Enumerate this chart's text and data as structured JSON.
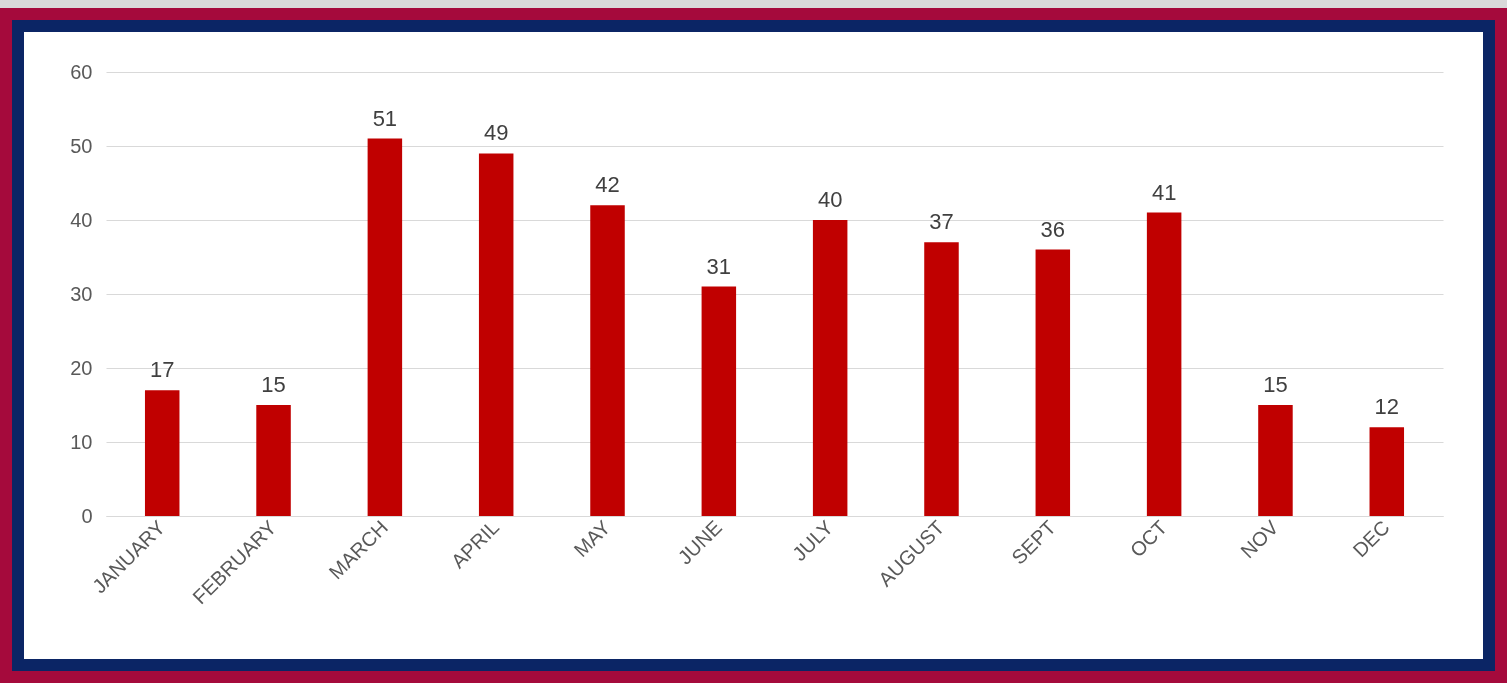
{
  "chart_data": {
    "type": "bar",
    "categories": [
      "JANUARY",
      "FEBRUARY",
      "MARCH",
      "APRIL",
      "MAY",
      "JUNE",
      "JULY",
      "AUGUST",
      "SEPT",
      "OCT",
      "NOV",
      "DEC"
    ],
    "values": [
      17,
      15,
      51,
      49,
      42,
      31,
      40,
      37,
      36,
      41,
      15,
      12
    ],
    "color": "#c00000",
    "ylim": [
      0,
      60
    ],
    "yticks": [
      0,
      10,
      20,
      30,
      40,
      50,
      60
    ],
    "grid": "y",
    "data_labels": true
  }
}
